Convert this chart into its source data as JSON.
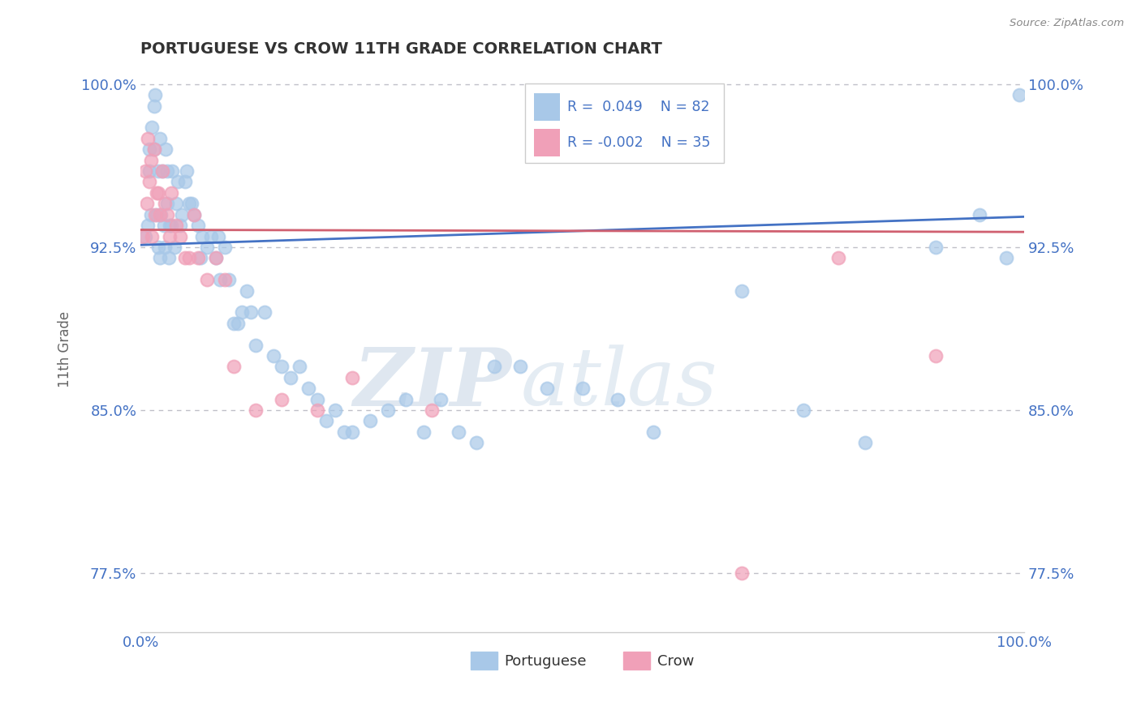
{
  "title": "PORTUGUESE VS CROW 11TH GRADE CORRELATION CHART",
  "source": "Source: ZipAtlas.com",
  "ylabel": "11th Grade",
  "xlim": [
    0.0,
    1.0
  ],
  "ylim": [
    0.748,
    1.008
  ],
  "yticks": [
    0.775,
    0.85,
    0.925,
    1.0
  ],
  "ytick_labels": [
    "77.5%",
    "85.0%",
    "92.5%",
    "100.0%"
  ],
  "xtick_labels": [
    "0.0%",
    "100.0%"
  ],
  "xticks": [
    0.0,
    1.0
  ],
  "legend_label1": "Portuguese",
  "legend_label2": "Crow",
  "R1": 0.049,
  "N1": 82,
  "R2": -0.002,
  "N2": 35,
  "color_blue": "#a8c8e8",
  "color_pink": "#f0a0b8",
  "color_blue_line": "#4472c4",
  "color_pink_line": "#d06070",
  "color_text_blue": "#4472c4",
  "watermark_zip": "ZIP",
  "watermark_atlas": "atlas",
  "blue_x": [
    0.005,
    0.008,
    0.01,
    0.01,
    0.012,
    0.013,
    0.015,
    0.015,
    0.016,
    0.018,
    0.02,
    0.02,
    0.022,
    0.022,
    0.023,
    0.025,
    0.026,
    0.027,
    0.028,
    0.03,
    0.03,
    0.032,
    0.033,
    0.035,
    0.036,
    0.038,
    0.04,
    0.042,
    0.045,
    0.047,
    0.05,
    0.052,
    0.055,
    0.058,
    0.06,
    0.065,
    0.068,
    0.07,
    0.075,
    0.08,
    0.085,
    0.088,
    0.09,
    0.095,
    0.1,
    0.105,
    0.11,
    0.115,
    0.12,
    0.125,
    0.13,
    0.14,
    0.15,
    0.16,
    0.17,
    0.18,
    0.19,
    0.2,
    0.21,
    0.22,
    0.23,
    0.24,
    0.26,
    0.28,
    0.3,
    0.32,
    0.34,
    0.36,
    0.38,
    0.4,
    0.43,
    0.46,
    0.5,
    0.54,
    0.58,
    0.68,
    0.75,
    0.82,
    0.9,
    0.95,
    0.98,
    0.995
  ],
  "blue_y": [
    0.93,
    0.935,
    0.96,
    0.97,
    0.94,
    0.98,
    0.97,
    0.99,
    0.995,
    0.94,
    0.925,
    0.96,
    0.975,
    0.92,
    0.94,
    0.96,
    0.935,
    0.925,
    0.97,
    0.945,
    0.96,
    0.92,
    0.935,
    0.935,
    0.96,
    0.925,
    0.945,
    0.955,
    0.935,
    0.94,
    0.955,
    0.96,
    0.945,
    0.945,
    0.94,
    0.935,
    0.92,
    0.93,
    0.925,
    0.93,
    0.92,
    0.93,
    0.91,
    0.925,
    0.91,
    0.89,
    0.89,
    0.895,
    0.905,
    0.895,
    0.88,
    0.895,
    0.875,
    0.87,
    0.865,
    0.87,
    0.86,
    0.855,
    0.845,
    0.85,
    0.84,
    0.84,
    0.845,
    0.85,
    0.855,
    0.84,
    0.855,
    0.84,
    0.835,
    0.87,
    0.87,
    0.86,
    0.86,
    0.855,
    0.84,
    0.905,
    0.85,
    0.835,
    0.925,
    0.94,
    0.92,
    0.995
  ],
  "pink_x": [
    0.003,
    0.005,
    0.007,
    0.008,
    0.01,
    0.012,
    0.013,
    0.015,
    0.016,
    0.018,
    0.02,
    0.022,
    0.025,
    0.027,
    0.03,
    0.033,
    0.035,
    0.04,
    0.045,
    0.05,
    0.055,
    0.06,
    0.065,
    0.075,
    0.085,
    0.095,
    0.105,
    0.13,
    0.16,
    0.2,
    0.24,
    0.33,
    0.68,
    0.79,
    0.9
  ],
  "pink_y": [
    0.93,
    0.96,
    0.945,
    0.975,
    0.955,
    0.965,
    0.93,
    0.97,
    0.94,
    0.95,
    0.95,
    0.94,
    0.96,
    0.945,
    0.94,
    0.93,
    0.95,
    0.935,
    0.93,
    0.92,
    0.92,
    0.94,
    0.92,
    0.91,
    0.92,
    0.91,
    0.87,
    0.85,
    0.855,
    0.85,
    0.865,
    0.85,
    0.775,
    0.92,
    0.875
  ]
}
